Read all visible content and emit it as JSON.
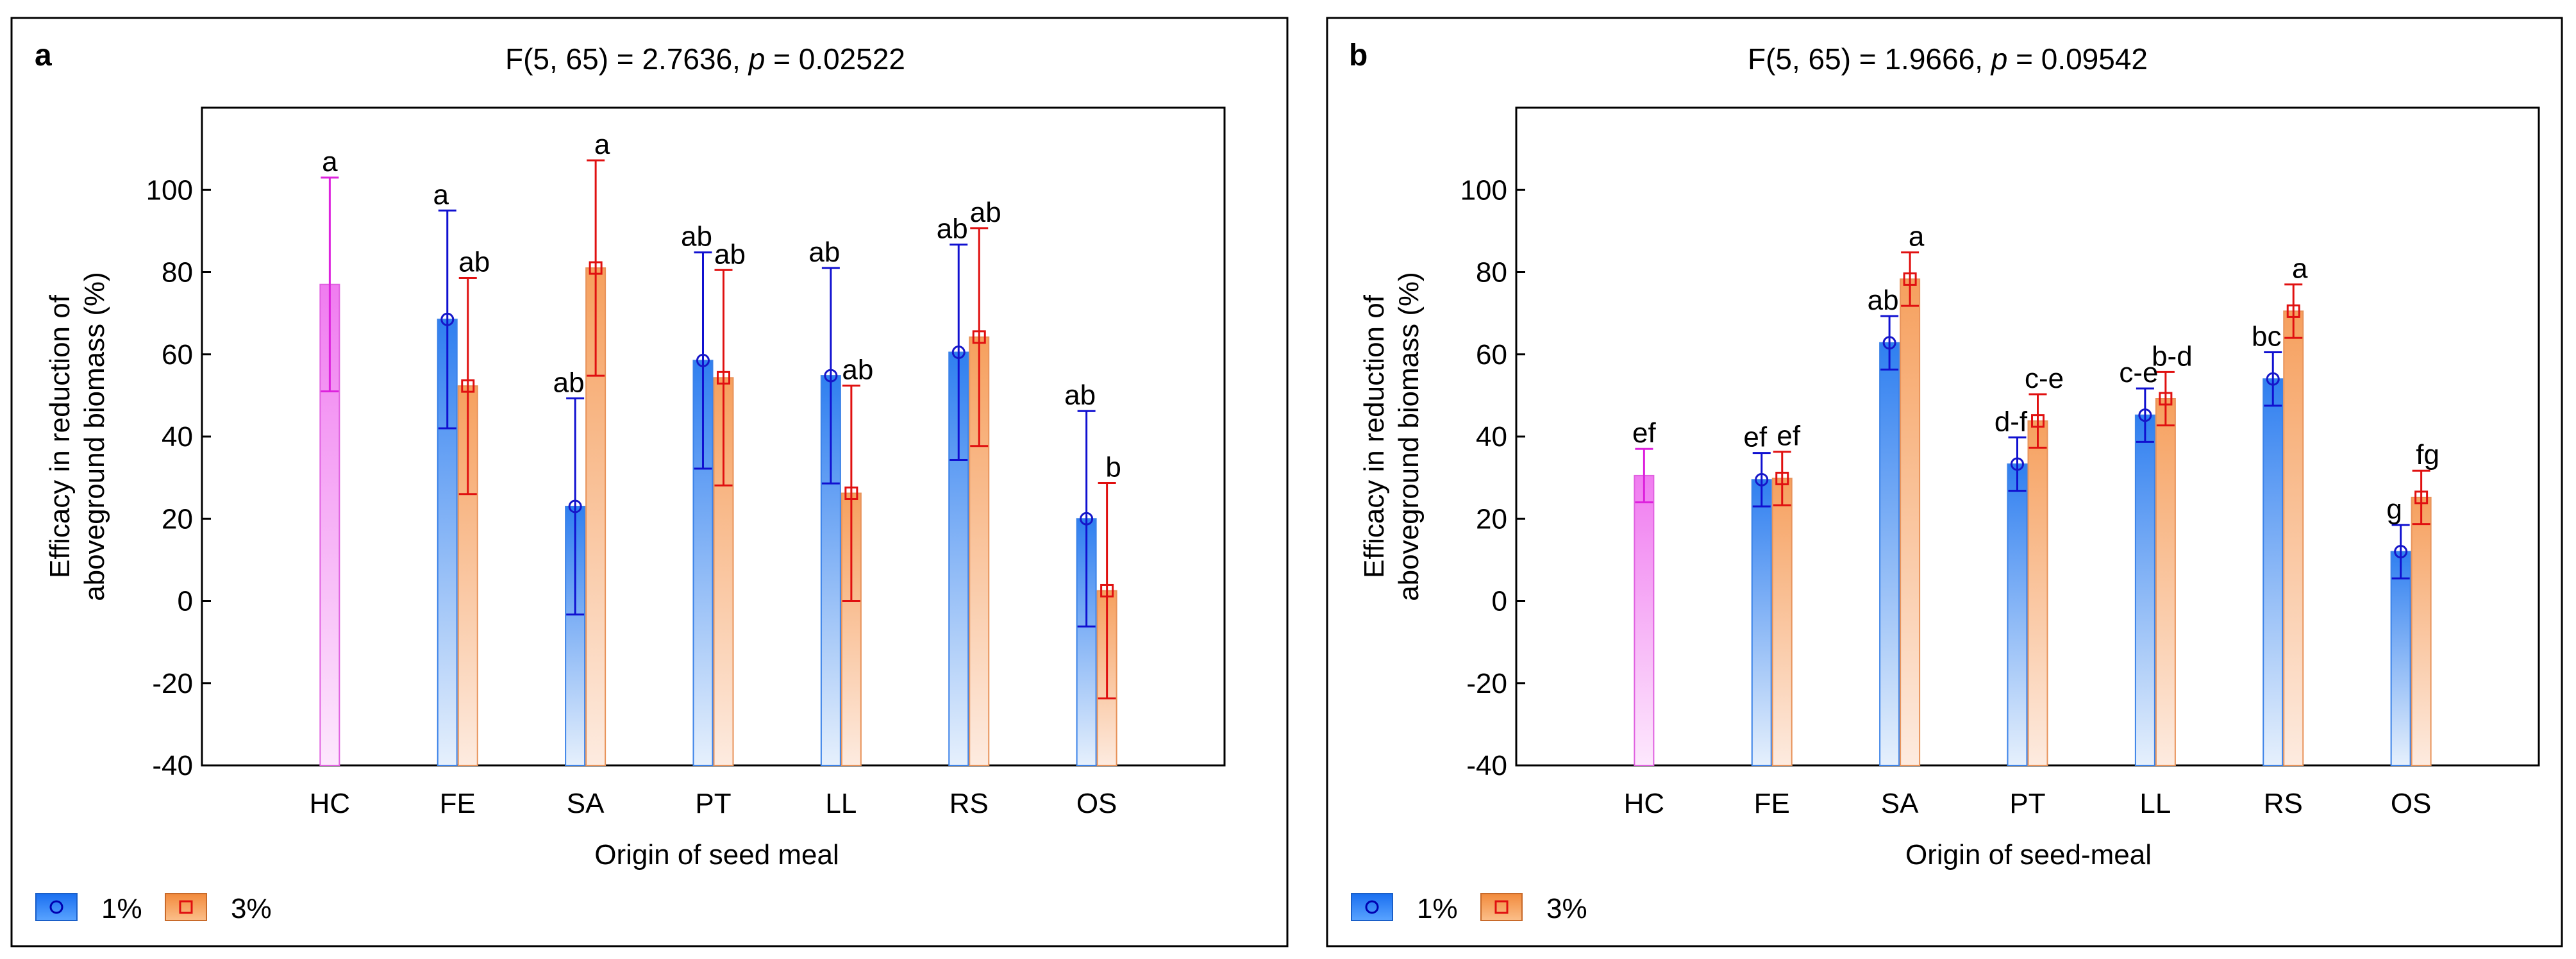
{
  "chart_data": [
    {
      "type": "bar",
      "panel_label": "a",
      "title_prefix": "F(5, 65) = 2.7636, ",
      "title_p": "p",
      "title_suffix": " = 0.02522",
      "xlabel": "Origin of seed meal",
      "ylabel_line1": "Efficacy in reduction of",
      "ylabel_line2": "aboveground biomass (%)",
      "ylim": [
        -40,
        120
      ],
      "yticks": [
        -40,
        -20,
        0,
        20,
        40,
        60,
        80,
        100
      ],
      "categories": [
        "HC",
        "FE",
        "SA",
        "PT",
        "LL",
        "RS",
        "OS"
      ],
      "hc": {
        "value": 77,
        "err": 26,
        "letter": "a"
      },
      "series": [
        {
          "name": "1%",
          "values": [
            null,
            68.5,
            23,
            58.5,
            54.8,
            60.5,
            20
          ],
          "errors": [
            null,
            26.5,
            26.3,
            26.3,
            26.2,
            26.2,
            26.2
          ],
          "letters": [
            null,
            "a",
            "ab",
            "ab",
            "ab",
            "ab",
            "ab"
          ]
        },
        {
          "name": "3%",
          "values": [
            null,
            52.3,
            81,
            54.3,
            26.2,
            64.2,
            2.5
          ],
          "errors": [
            null,
            26.3,
            26.2,
            26.2,
            26.2,
            26.5,
            26.2
          ],
          "letters": [
            null,
            "ab",
            "a",
            "ab",
            "ab",
            "ab",
            "b"
          ]
        }
      ]
    },
    {
      "type": "bar",
      "panel_label": "b",
      "title_prefix": "F(5, 65) = 1.9666, ",
      "title_p": "p",
      "title_suffix": " = 0.09542",
      "xlabel": "Origin of seed-meal",
      "ylabel_line1": "Efficacy in reduction of",
      "ylabel_line2": "aboveground biomass (%)",
      "ylim": [
        -40,
        120
      ],
      "yticks": [
        -40,
        -20,
        0,
        20,
        40,
        60,
        80,
        100
      ],
      "categories": [
        "HC",
        "FE",
        "SA",
        "PT",
        "LL",
        "RS",
        "OS"
      ],
      "hc": {
        "value": 30.5,
        "err": 6.5,
        "letter": "ef"
      },
      "series": [
        {
          "name": "1%",
          "values": [
            null,
            29.5,
            62.8,
            33.3,
            45.2,
            54,
            12
          ],
          "errors": [
            null,
            6.5,
            6.5,
            6.5,
            6.5,
            6.5,
            6.5
          ],
          "letters": [
            null,
            "ef",
            "ab",
            "d-f",
            "c-e",
            "bc",
            "g"
          ]
        },
        {
          "name": "3%",
          "values": [
            null,
            29.8,
            78.3,
            43.8,
            49.2,
            70.5,
            25.2
          ],
          "errors": [
            null,
            6.5,
            6.5,
            6.5,
            6.5,
            6.5,
            6.5
          ],
          "letters": [
            null,
            "ef",
            "a",
            "c-e",
            "b-d",
            "a",
            "fg"
          ]
        }
      ]
    }
  ],
  "legend": {
    "items": [
      "1%",
      "3%"
    ]
  },
  "colors": {
    "blue_top": "#2f7ff0",
    "blue_bottom": "#e6f0fc",
    "blue_edge": "#3b82e8",
    "blue_marker": "#1616c8",
    "blue_err": "#1010d0",
    "orange_top": "#f6a05e",
    "orange_bottom": "#fdebe0",
    "orange_edge": "#e8935a",
    "orange_marker": "#e01010",
    "orange_err": "#e01010",
    "pink_top": "#f07cf0",
    "pink_bottom": "#fde8fd",
    "pink_edge": "#e060e0",
    "pink_err": "#dd22dd"
  }
}
